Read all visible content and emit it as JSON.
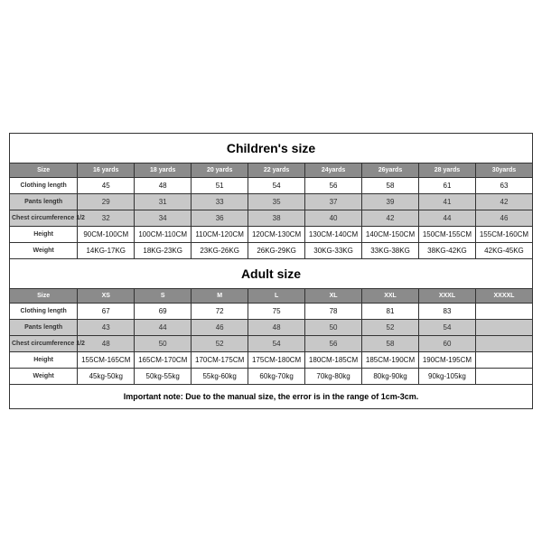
{
  "children": {
    "title": "Children's size",
    "row_labels": [
      "Size",
      "Clothing length",
      "Pants length",
      "Chest circumference 1/2",
      "Height",
      "Weight"
    ],
    "headers": [
      "16 yards",
      "18 yards",
      "20 yards",
      "22 yards",
      "24yards",
      "26yards",
      "28 yards",
      "30yards"
    ],
    "rows": [
      [
        "45",
        "48",
        "51",
        "54",
        "56",
        "58",
        "61",
        "63"
      ],
      [
        "29",
        "31",
        "33",
        "35",
        "37",
        "39",
        "41",
        "42"
      ],
      [
        "32",
        "34",
        "36",
        "38",
        "40",
        "42",
        "44",
        "46"
      ],
      [
        "90CM-100CM",
        "100CM-110CM",
        "110CM-120CM",
        "120CM-130CM",
        "130CM-140CM",
        "140CM-150CM",
        "150CM-155CM",
        "155CM-160CM"
      ],
      [
        "14KG-17KG",
        "18KG-23KG",
        "23KG-26KG",
        "26KG-29KG",
        "30KG-33KG",
        "33KG-38KG",
        "38KG-42KG",
        "42KG-45KG"
      ]
    ]
  },
  "adult": {
    "title": "Adult size",
    "row_labels": [
      "Size",
      "Clothing length",
      "Pants length",
      "Chest circumference 1/2",
      "Height",
      "Weight"
    ],
    "headers": [
      "XS",
      "S",
      "M",
      "L",
      "XL",
      "XXL",
      "XXXL",
      "XXXXL"
    ],
    "rows": [
      [
        "67",
        "69",
        "72",
        "75",
        "78",
        "81",
        "83",
        ""
      ],
      [
        "43",
        "44",
        "46",
        "48",
        "50",
        "52",
        "54",
        ""
      ],
      [
        "48",
        "50",
        "52",
        "54",
        "56",
        "58",
        "60",
        ""
      ],
      [
        "155CM-165CM",
        "165CM-170CM",
        "170CM-175CM",
        "175CM-180CM",
        "180CM-185CM",
        "185CM-190CM",
        "190CM-195CM",
        ""
      ],
      [
        "45kg-50kg",
        "50kg-55kg",
        "55kg-60kg",
        "60kg-70kg",
        "70kg-80kg",
        "80kg-90kg",
        "90kg-105kg",
        ""
      ]
    ]
  },
  "note": "Important note: Due to the manual size, the error is in the range of 1cm-3cm."
}
